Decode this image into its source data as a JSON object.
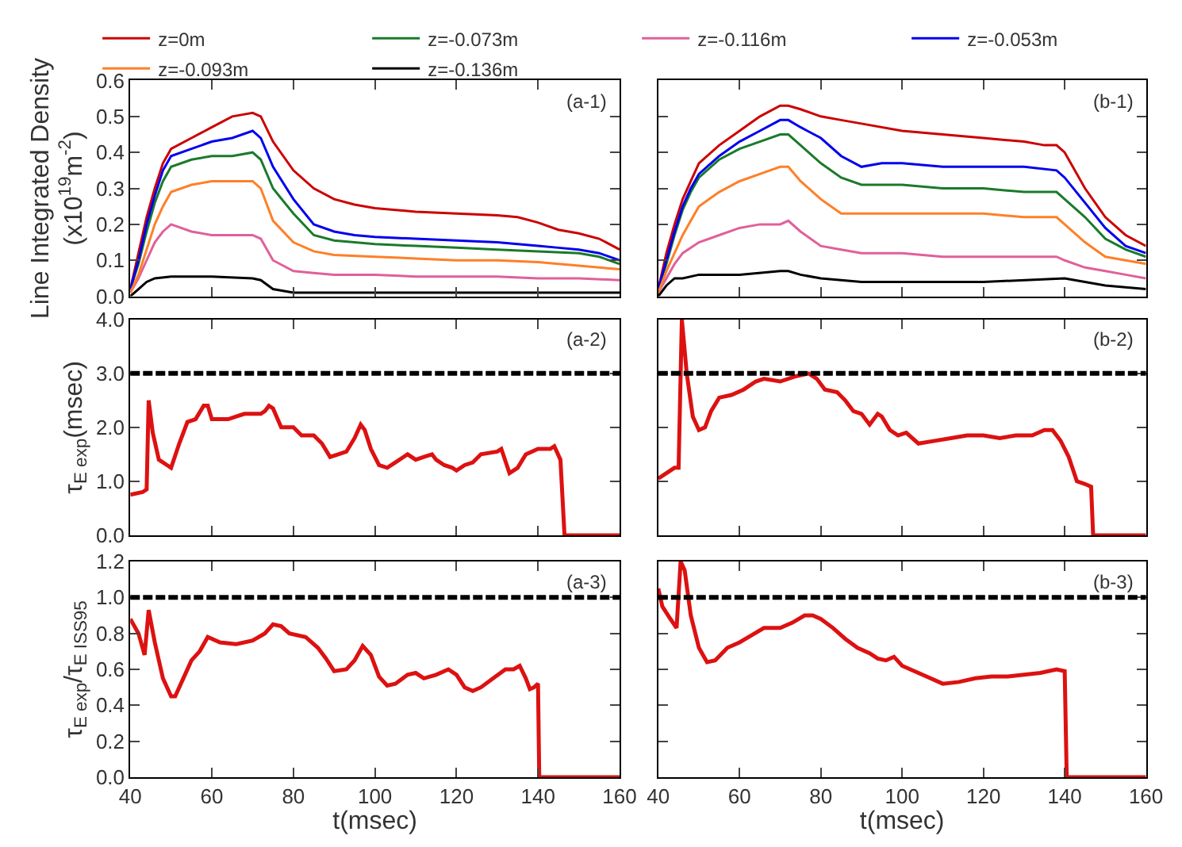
{
  "chart_data": [
    {
      "type": "line",
      "ylabel": "Line Integrated Density\n(x10$^{19}$m$^{-2}$)",
      "annotations": [
        "(a-1)"
      ],
      "xlim": [
        40,
        160
      ],
      "ylim": [
        0,
        0.6
      ],
      "xticks": [
        40,
        60,
        80,
        100,
        120,
        140,
        160
      ],
      "yticks": [
        {
          "value": 0,
          "label": "0.0"
        },
        {
          "value": 0.1,
          "label": "0.1"
        },
        {
          "value": 0.2,
          "label": "0.2"
        },
        {
          "value": 0.3,
          "label": "0.3"
        },
        {
          "value": 0.4,
          "label": "0.4"
        },
        {
          "value": 0.5,
          "label": "0.5"
        },
        {
          "value": 0.6,
          "label": "0.6"
        }
      ],
      "tick_labels": "y",
      "legend": "top",
      "series": [
        {
          "name": "z=0m",
          "color": "#cc0000",
          "x": [
            40,
            42,
            44,
            46,
            48,
            50,
            55,
            60,
            65,
            70,
            72,
            75,
            80,
            85,
            90,
            95,
            100,
            110,
            120,
            130,
            135,
            140,
            145,
            150,
            155,
            160
          ],
          "values": [
            0.02,
            0.12,
            0.22,
            0.3,
            0.37,
            0.41,
            0.44,
            0.47,
            0.5,
            0.51,
            0.5,
            0.43,
            0.35,
            0.3,
            0.27,
            0.255,
            0.245,
            0.235,
            0.23,
            0.225,
            0.22,
            0.205,
            0.185,
            0.175,
            0.16,
            0.13
          ]
        },
        {
          "name": "z=-0.073m",
          "color": "#1a7a2a",
          "x": [
            40,
            42,
            44,
            46,
            48,
            50,
            55,
            60,
            65,
            70,
            72,
            75,
            80,
            85,
            90,
            95,
            100,
            110,
            120,
            130,
            140,
            150,
            155,
            160
          ],
          "values": [
            0.02,
            0.09,
            0.18,
            0.26,
            0.32,
            0.36,
            0.38,
            0.39,
            0.39,
            0.4,
            0.38,
            0.3,
            0.23,
            0.17,
            0.155,
            0.15,
            0.145,
            0.14,
            0.135,
            0.13,
            0.125,
            0.12,
            0.11,
            0.09
          ]
        },
        {
          "name": "z=-0.116m",
          "color": "#e0609a",
          "x": [
            40,
            42,
            44,
            46,
            48,
            50,
            55,
            60,
            65,
            70,
            72,
            75,
            80,
            85,
            90,
            100,
            110,
            120,
            130,
            140,
            150,
            160
          ],
          "values": [
            0.01,
            0.05,
            0.1,
            0.15,
            0.18,
            0.2,
            0.18,
            0.17,
            0.17,
            0.17,
            0.16,
            0.1,
            0.07,
            0.065,
            0.06,
            0.06,
            0.055,
            0.055,
            0.055,
            0.05,
            0.05,
            0.045
          ]
        },
        {
          "name": "z=-0.053m",
          "color": "#0000ee",
          "x": [
            40,
            42,
            44,
            46,
            48,
            50,
            55,
            60,
            65,
            70,
            72,
            75,
            80,
            85,
            90,
            95,
            100,
            110,
            120,
            130,
            140,
            145,
            150,
            155,
            160
          ],
          "values": [
            0.02,
            0.1,
            0.2,
            0.28,
            0.35,
            0.39,
            0.41,
            0.43,
            0.44,
            0.46,
            0.44,
            0.36,
            0.27,
            0.2,
            0.18,
            0.17,
            0.165,
            0.16,
            0.155,
            0.15,
            0.14,
            0.135,
            0.13,
            0.12,
            0.1
          ]
        },
        {
          "name": "z=-0.093m",
          "color": "#ff7f27",
          "x": [
            40,
            42,
            44,
            46,
            48,
            50,
            55,
            60,
            65,
            70,
            72,
            75,
            80,
            85,
            90,
            100,
            110,
            120,
            130,
            140,
            150,
            160
          ],
          "values": [
            0.01,
            0.06,
            0.13,
            0.2,
            0.25,
            0.29,
            0.31,
            0.32,
            0.32,
            0.32,
            0.3,
            0.21,
            0.15,
            0.125,
            0.115,
            0.11,
            0.105,
            0.1,
            0.1,
            0.095,
            0.085,
            0.075
          ]
        },
        {
          "name": "z=-0.136m",
          "color": "#000000",
          "x": [
            40,
            42,
            44,
            46,
            50,
            60,
            70,
            72,
            75,
            80,
            90,
            100,
            120,
            140,
            160
          ],
          "values": [
            0.0,
            0.02,
            0.04,
            0.05,
            0.055,
            0.055,
            0.05,
            0.045,
            0.02,
            0.01,
            0.01,
            0.01,
            0.01,
            0.01,
            0.01
          ]
        }
      ]
    },
    {
      "type": "line",
      "annotations": [
        "(b-1)"
      ],
      "xlim": [
        40,
        160
      ],
      "ylim": [
        0,
        0.6
      ],
      "xticks": [
        40,
        60,
        80,
        100,
        120,
        140,
        160
      ],
      "yticks": [
        {
          "value": 0,
          "label": null
        },
        {
          "value": 0.1,
          "label": null
        },
        {
          "value": 0.2,
          "label": null
        },
        {
          "value": 0.3,
          "label": null
        },
        {
          "value": 0.4,
          "label": null
        },
        {
          "value": 0.5,
          "label": null
        },
        {
          "value": 0.6,
          "label": null
        }
      ],
      "tick_labels": false,
      "series": [
        {
          "color": "#cc0000",
          "x": [
            40,
            42,
            44,
            46,
            48,
            50,
            55,
            60,
            65,
            70,
            72,
            75,
            80,
            85,
            90,
            100,
            110,
            120,
            130,
            135,
            138,
            140,
            145,
            150,
            155,
            160
          ],
          "values": [
            0.02,
            0.12,
            0.2,
            0.27,
            0.32,
            0.37,
            0.42,
            0.46,
            0.5,
            0.53,
            0.53,
            0.52,
            0.5,
            0.49,
            0.48,
            0.46,
            0.45,
            0.44,
            0.43,
            0.42,
            0.42,
            0.4,
            0.3,
            0.22,
            0.17,
            0.14
          ]
        },
        {
          "color": "#1a7a2a",
          "x": [
            40,
            42,
            44,
            46,
            48,
            50,
            55,
            60,
            65,
            70,
            72,
            75,
            80,
            85,
            90,
            100,
            110,
            120,
            130,
            138,
            140,
            145,
            150,
            155,
            160
          ],
          "values": [
            0.02,
            0.09,
            0.17,
            0.24,
            0.29,
            0.33,
            0.38,
            0.41,
            0.43,
            0.45,
            0.45,
            0.42,
            0.37,
            0.33,
            0.31,
            0.31,
            0.3,
            0.3,
            0.29,
            0.29,
            0.27,
            0.22,
            0.16,
            0.13,
            0.11
          ]
        },
        {
          "color": "#e0609a",
          "x": [
            40,
            42,
            44,
            46,
            50,
            55,
            60,
            65,
            70,
            72,
            75,
            80,
            85,
            90,
            100,
            110,
            120,
            130,
            138,
            140,
            145,
            150,
            155,
            160
          ],
          "values": [
            0.01,
            0.05,
            0.09,
            0.12,
            0.15,
            0.17,
            0.19,
            0.2,
            0.2,
            0.21,
            0.18,
            0.14,
            0.13,
            0.12,
            0.12,
            0.11,
            0.11,
            0.11,
            0.11,
            0.1,
            0.08,
            0.07,
            0.06,
            0.05
          ]
        },
        {
          "color": "#0000ee",
          "x": [
            40,
            42,
            44,
            46,
            48,
            50,
            55,
            60,
            65,
            70,
            72,
            75,
            80,
            85,
            90,
            95,
            100,
            110,
            120,
            130,
            138,
            140,
            145,
            150,
            155,
            160
          ],
          "values": [
            0.02,
            0.1,
            0.18,
            0.25,
            0.3,
            0.34,
            0.39,
            0.43,
            0.46,
            0.49,
            0.49,
            0.47,
            0.44,
            0.39,
            0.36,
            0.37,
            0.37,
            0.36,
            0.36,
            0.36,
            0.35,
            0.33,
            0.26,
            0.19,
            0.14,
            0.12
          ]
        },
        {
          "color": "#ff7f27",
          "x": [
            40,
            42,
            44,
            46,
            48,
            50,
            55,
            60,
            65,
            70,
            72,
            75,
            80,
            85,
            90,
            100,
            110,
            120,
            130,
            138,
            140,
            145,
            150,
            155,
            160
          ],
          "values": [
            0.01,
            0.07,
            0.12,
            0.17,
            0.21,
            0.25,
            0.29,
            0.32,
            0.34,
            0.36,
            0.36,
            0.32,
            0.27,
            0.23,
            0.23,
            0.23,
            0.23,
            0.23,
            0.22,
            0.22,
            0.2,
            0.15,
            0.11,
            0.1,
            0.09
          ]
        },
        {
          "color": "#000000",
          "x": [
            40,
            42,
            44,
            46,
            50,
            60,
            70,
            72,
            75,
            80,
            90,
            100,
            120,
            140,
            145,
            150,
            160
          ],
          "values": [
            0.0,
            0.03,
            0.05,
            0.05,
            0.06,
            0.06,
            0.07,
            0.07,
            0.06,
            0.05,
            0.04,
            0.04,
            0.04,
            0.05,
            0.04,
            0.03,
            0.02
          ]
        }
      ]
    },
    {
      "type": "line",
      "ylabel": "τ$_{E exp}$(msec)",
      "annotations": [
        "(a-2)"
      ],
      "xlim": [
        40,
        160
      ],
      "ylim": [
        0,
        4
      ],
      "xticks": [
        40,
        60,
        80,
        100,
        120,
        140,
        160
      ],
      "yticks": [
        {
          "value": 0,
          "label": "0.0"
        },
        {
          "value": 1,
          "label": "1.0"
        },
        {
          "value": 2,
          "label": "2.0"
        },
        {
          "value": 3,
          "label": "3.0"
        },
        {
          "value": 4,
          "label": "4.0"
        }
      ],
      "tick_labels": "y",
      "ref_lines": [
        {
          "axis": "y",
          "value": 3,
          "color": "#000000",
          "line_style": "dashed"
        }
      ],
      "series": [
        {
          "color": "#dd1111",
          "x": [
            40,
            43,
            44,
            44.5,
            45.5,
            47,
            49,
            50,
            52,
            54,
            56,
            58,
            59,
            60,
            64,
            66,
            68,
            72,
            73,
            74,
            75,
            77,
            80,
            82,
            85,
            87,
            89,
            91,
            93,
            95,
            96.5,
            97.5,
            99,
            101,
            103,
            105,
            107,
            108,
            110,
            112,
            114,
            115,
            117,
            119,
            120,
            122,
            124,
            126,
            130,
            131,
            133,
            135,
            137,
            140,
            143,
            144,
            145.5,
            146.5,
            160
          ],
          "values": [
            0.75,
            0.8,
            0.85,
            2.5,
            1.9,
            1.4,
            1.3,
            1.25,
            1.7,
            2.1,
            2.15,
            2.4,
            2.4,
            2.15,
            2.15,
            2.2,
            2.25,
            2.25,
            2.3,
            2.4,
            2.35,
            2.0,
            2.0,
            1.85,
            1.85,
            1.7,
            1.45,
            1.5,
            1.55,
            1.8,
            2.05,
            1.95,
            1.6,
            1.3,
            1.25,
            1.35,
            1.45,
            1.5,
            1.4,
            1.45,
            1.5,
            1.4,
            1.3,
            1.25,
            1.2,
            1.3,
            1.35,
            1.5,
            1.55,
            1.6,
            1.15,
            1.25,
            1.5,
            1.6,
            1.6,
            1.65,
            1.4,
            0.0,
            0.0
          ]
        }
      ]
    },
    {
      "type": "line",
      "annotations": [
        "(b-2)"
      ],
      "xlim": [
        40,
        160
      ],
      "ylim": [
        0,
        4
      ],
      "xticks": [
        40,
        60,
        80,
        100,
        120,
        140,
        160
      ],
      "yticks": [
        {
          "value": 0,
          "label": null
        },
        {
          "value": 1,
          "label": null
        },
        {
          "value": 2,
          "label": null
        },
        {
          "value": 3,
          "label": null
        },
        {
          "value": 4,
          "label": null
        }
      ],
      "tick_labels": false,
      "ref_lines": [
        {
          "axis": "y",
          "value": 3,
          "color": "#000000",
          "line_style": "dashed"
        }
      ],
      "series": [
        {
          "color": "#dd1111",
          "x": [
            40,
            42,
            44,
            45,
            45.8,
            47,
            48.5,
            50,
            51.5,
            53,
            55,
            58,
            61,
            64,
            66,
            70,
            74,
            77,
            79,
            81,
            84,
            86,
            88,
            90,
            92,
            94,
            95,
            97,
            99,
            101,
            104,
            108,
            112,
            116,
            120,
            124,
            128,
            132,
            135,
            137,
            139,
            141,
            143,
            145,
            146.5,
            147,
            160
          ],
          "values": [
            1.05,
            1.15,
            1.25,
            1.25,
            4.0,
            3.0,
            2.2,
            1.95,
            2.0,
            2.3,
            2.55,
            2.6,
            2.7,
            2.85,
            2.9,
            2.85,
            2.95,
            3.0,
            2.9,
            2.7,
            2.65,
            2.5,
            2.3,
            2.25,
            2.05,
            2.25,
            2.2,
            1.95,
            1.85,
            1.9,
            1.7,
            1.75,
            1.8,
            1.85,
            1.85,
            1.8,
            1.85,
            1.85,
            1.95,
            1.95,
            1.75,
            1.45,
            1.0,
            0.95,
            0.9,
            0.0,
            0.0
          ]
        }
      ]
    },
    {
      "type": "line",
      "xlabel": "t(msec)",
      "ylabel": "τ$_{E exp}$/τ$_{E ISS95}$",
      "annotations": [
        "(a-3)"
      ],
      "xlim": [
        40,
        160
      ],
      "ylim": [
        0,
        1.2
      ],
      "xticks": [
        40,
        60,
        80,
        100,
        120,
        140,
        160
      ],
      "yticks": [
        {
          "value": 0,
          "label": "0.0"
        },
        {
          "value": 0.2,
          "label": "0.2"
        },
        {
          "value": 0.4,
          "label": "0.4"
        },
        {
          "value": 0.6,
          "label": "0.6"
        },
        {
          "value": 0.8,
          "label": "0.8"
        },
        {
          "value": 1,
          "label": "1.0"
        },
        {
          "value": 1.2,
          "label": "1.2"
        }
      ],
      "ref_lines": [
        {
          "axis": "y",
          "value": 1,
          "color": "#000000",
          "line_style": "dashed"
        }
      ],
      "series": [
        {
          "color": "#dd1111",
          "x": [
            40,
            42,
            43.5,
            44.5,
            46,
            48,
            50,
            51,
            53,
            55,
            57,
            59,
            62,
            66,
            70,
            73,
            75,
            77,
            79,
            83,
            86,
            88,
            90,
            93,
            95,
            97,
            99,
            101,
            103,
            105,
            108,
            110,
            112,
            115,
            118,
            120,
            122,
            124,
            126,
            129,
            132,
            134,
            135.5,
            137,
            138,
            139,
            140,
            140.3,
            160
          ],
          "values": [
            0.88,
            0.8,
            0.68,
            0.93,
            0.75,
            0.55,
            0.45,
            0.45,
            0.55,
            0.65,
            0.7,
            0.78,
            0.75,
            0.74,
            0.76,
            0.8,
            0.85,
            0.84,
            0.8,
            0.78,
            0.72,
            0.66,
            0.59,
            0.6,
            0.65,
            0.73,
            0.68,
            0.56,
            0.51,
            0.52,
            0.57,
            0.58,
            0.55,
            0.57,
            0.6,
            0.57,
            0.5,
            0.48,
            0.5,
            0.55,
            0.6,
            0.6,
            0.62,
            0.55,
            0.49,
            0.5,
            0.52,
            0.0,
            0.0
          ]
        }
      ]
    },
    {
      "type": "line",
      "xlabel": "t(msec)",
      "annotations": [
        "(b-3)"
      ],
      "xlim": [
        40,
        160
      ],
      "ylim": [
        0,
        1.2
      ],
      "xticks": [
        40,
        60,
        80,
        100,
        120,
        140,
        160
      ],
      "yticks": [
        {
          "value": 0,
          "label": null
        },
        {
          "value": 0.2,
          "label": null
        },
        {
          "value": 0.4,
          "label": null
        },
        {
          "value": 0.6,
          "label": null
        },
        {
          "value": 0.8,
          "label": null
        },
        {
          "value": 1,
          "label": null
        },
        {
          "value": 1.2,
          "label": null
        }
      ],
      "tick_labels": "x",
      "ref_lines": [
        {
          "axis": "y",
          "value": 1,
          "color": "#000000",
          "line_style": "dashed"
        }
      ],
      "series": [
        {
          "color": "#dd1111",
          "x": [
            40,
            41,
            43,
            44.5,
            45.5,
            46.5,
            48,
            50,
            52,
            54,
            57,
            60,
            63,
            66,
            70,
            73,
            76,
            78,
            80,
            83,
            86,
            89,
            92,
            94,
            96,
            98,
            100,
            102,
            106,
            110,
            114,
            118,
            122,
            126,
            130,
            134,
            138,
            140,
            140.5,
            160
          ],
          "values": [
            1.05,
            0.95,
            0.88,
            0.83,
            1.2,
            1.15,
            0.9,
            0.72,
            0.64,
            0.65,
            0.72,
            0.75,
            0.79,
            0.83,
            0.83,
            0.86,
            0.9,
            0.9,
            0.88,
            0.83,
            0.77,
            0.72,
            0.69,
            0.66,
            0.65,
            0.67,
            0.62,
            0.6,
            0.56,
            0.52,
            0.53,
            0.55,
            0.56,
            0.56,
            0.57,
            0.58,
            0.6,
            0.59,
            0.0,
            0.0
          ]
        }
      ]
    }
  ]
}
